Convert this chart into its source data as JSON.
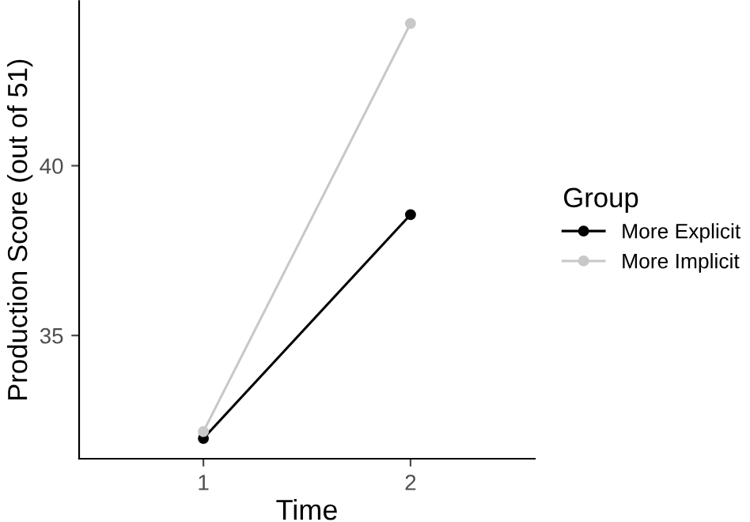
{
  "chart_data": {
    "type": "line",
    "xlabel": "Time",
    "ylabel": "Production Score (out of 51)",
    "legend_title": "Group",
    "categories": [
      "1",
      "2"
    ],
    "series": [
      {
        "name": "More Explicit",
        "color": "#000000",
        "values": [
          31.97,
          38.56
        ]
      },
      {
        "name": "More Implicit",
        "color": "#c8c8c8",
        "values": [
          32.17,
          44.19
        ]
      }
    ],
    "ylim": [
      31.37,
      44.85
    ],
    "yticks": [
      35,
      40
    ],
    "marker": "circle",
    "line_style": "solid",
    "grid": false,
    "legend": "right"
  }
}
